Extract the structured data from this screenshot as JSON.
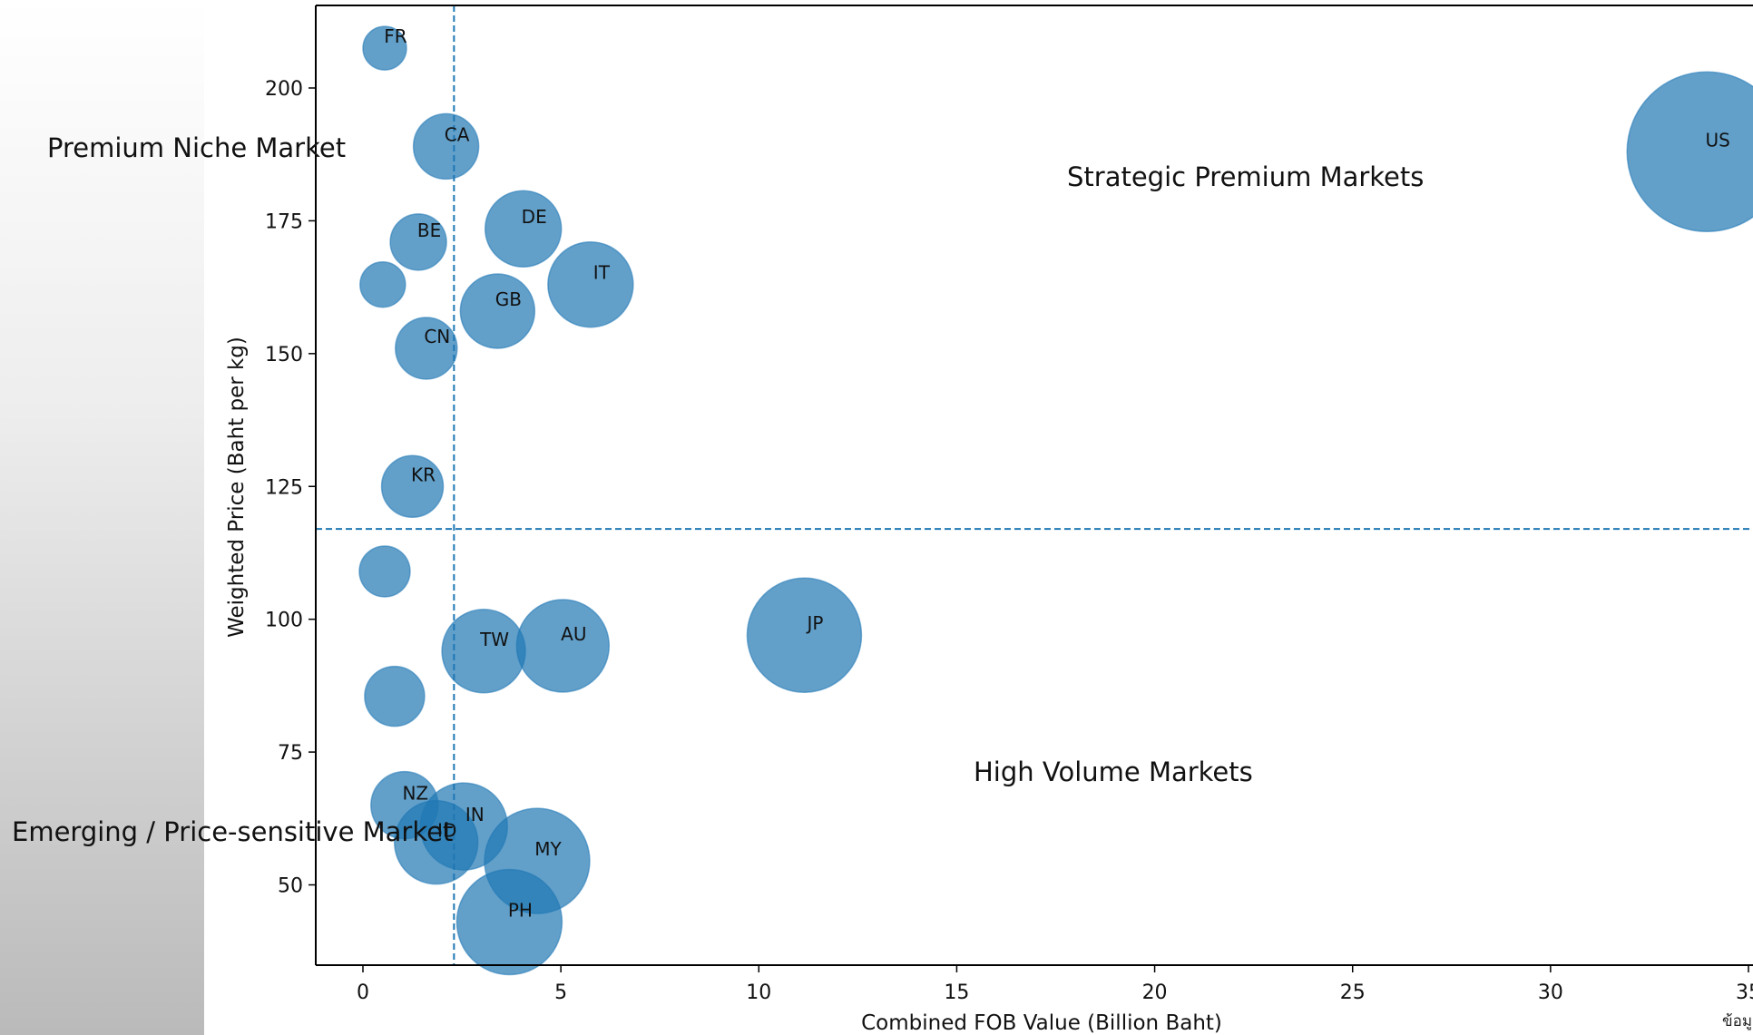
{
  "chart_data": {
    "type": "scatter",
    "subtype": "bubble",
    "xlabel": "Combined FOB Value (Billion Baht)",
    "ylabel": "Weighted Price (Baht per kg)",
    "xlim": [
      -1.2,
      35
    ],
    "ylim": [
      35,
      216
    ],
    "xticks": [
      "0",
      "5",
      "10",
      "15",
      "20",
      "25",
      "30",
      "35"
    ],
    "yticks": [
      "50",
      "75",
      "100",
      "125",
      "150",
      "175",
      "200"
    ],
    "reference_lines": {
      "x": 2.3,
      "y": 117,
      "style": "dashed"
    },
    "bubble_color": "#1f77b4",
    "points": [
      {
        "label": "FR",
        "x": 0.55,
        "y": 207.5,
        "r": 24
      },
      {
        "label": "CA",
        "x": 2.1,
        "y": 189,
        "r": 36
      },
      {
        "label": "BE",
        "x": 1.4,
        "y": 171,
        "r": 31
      },
      {
        "label": "DE",
        "x": 4.05,
        "y": 173.5,
        "r": 42
      },
      {
        "label": "",
        "x": 0.5,
        "y": 163,
        "r": 25
      },
      {
        "label": "IT",
        "x": 5.75,
        "y": 163,
        "r": 47
      },
      {
        "label": "GB",
        "x": 3.4,
        "y": 158,
        "r": 41
      },
      {
        "label": "CN",
        "x": 1.6,
        "y": 151,
        "r": 34
      },
      {
        "label": "KR",
        "x": 1.25,
        "y": 125,
        "r": 34
      },
      {
        "label": "",
        "x": 0.55,
        "y": 109,
        "r": 28
      },
      {
        "label": "TW",
        "x": 3.05,
        "y": 94,
        "r": 46
      },
      {
        "label": "AU",
        "x": 5.05,
        "y": 95,
        "r": 51
      },
      {
        "label": "JP",
        "x": 11.15,
        "y": 97,
        "r": 63
      },
      {
        "label": "",
        "x": 0.8,
        "y": 85.5,
        "r": 33
      },
      {
        "label": "NZ",
        "x": 1.05,
        "y": 65,
        "r": 37
      },
      {
        "label": "IN",
        "x": 2.55,
        "y": 61,
        "r": 48
      },
      {
        "label": "ID",
        "x": 1.85,
        "y": 58,
        "r": 46
      },
      {
        "label": "MY",
        "x": 4.4,
        "y": 54.5,
        "r": 58
      },
      {
        "label": "PH",
        "x": 3.7,
        "y": 43,
        "r": 58
      },
      {
        "label": "US",
        "x": 33.95,
        "y": 188,
        "r": 88
      }
    ]
  },
  "quadrant_labels": {
    "premium_niche": "Premium Niche Market",
    "strategic_premium": "Strategic Premium Markets",
    "high_volume": "High Volume Markets",
    "emerging": "Emerging / Price-sensitive Market"
  },
  "footnote": "ข้อมู"
}
